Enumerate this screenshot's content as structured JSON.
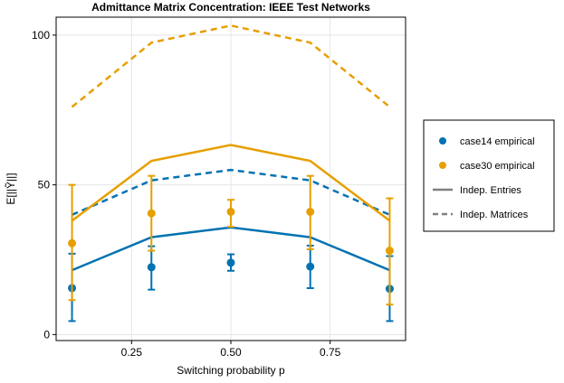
{
  "chart_data": {
    "type": "line",
    "title": "Admittance Matrix Concentration: IEEE Test Networks",
    "xlabel": "Switching probability p",
    "ylabel": "E[||Ỹ||]",
    "xlim": [
      0.06,
      0.94
    ],
    "ylim": [
      -2,
      106
    ],
    "xticks": [
      0.25,
      0.5,
      0.75
    ],
    "xtick_labels": [
      "0.25",
      "0.50",
      "0.75"
    ],
    "yticks": [
      0,
      50,
      100
    ],
    "ytick_labels": [
      "0",
      "50",
      "100"
    ],
    "grid": true,
    "legend_position": "right",
    "colors": {
      "case14": "#0072b2",
      "case30": "#e69f00",
      "legend_line": "#808080"
    },
    "scatter_series": [
      {
        "name": "case14 empirical",
        "color": "#0072b2",
        "x": [
          0.1,
          0.3,
          0.5,
          0.7,
          0.9
        ],
        "y": [
          15.5,
          22.5,
          24.0,
          22.7,
          15.3
        ],
        "err_low": [
          4.5,
          15.0,
          21.3,
          15.5,
          4.5
        ],
        "err_high": [
          27.0,
          29.5,
          26.8,
          29.7,
          26.2
        ]
      },
      {
        "name": "case30 empirical",
        "color": "#e69f00",
        "x": [
          0.1,
          0.3,
          0.5,
          0.7,
          0.9
        ],
        "y": [
          30.5,
          40.5,
          41.0,
          41.0,
          28.0
        ],
        "err_low": [
          11.5,
          28.0,
          36.0,
          28.5,
          10.0
        ],
        "err_high": [
          50.0,
          53.0,
          45.0,
          53.0,
          45.5
        ]
      }
    ],
    "line_series": [
      {
        "group": "case14",
        "style": "solid",
        "color": "#0072b2",
        "x": [
          0.1,
          0.3,
          0.5,
          0.7,
          0.9
        ],
        "y": [
          21.5,
          32.5,
          35.8,
          32.5,
          21.5
        ]
      },
      {
        "group": "case14",
        "style": "dashed",
        "color": "#0072b2",
        "x": [
          0.1,
          0.3,
          0.5,
          0.7,
          0.9
        ],
        "y": [
          40.0,
          51.5,
          55.0,
          51.5,
          40.0
        ]
      },
      {
        "group": "case30",
        "style": "solid",
        "color": "#e69f00",
        "x": [
          0.1,
          0.3,
          0.5,
          0.7,
          0.9
        ],
        "y": [
          38.0,
          58.0,
          63.3,
          58.0,
          38.0
        ]
      },
      {
        "group": "case30",
        "style": "dashed",
        "color": "#e69f00",
        "x": [
          0.1,
          0.3,
          0.5,
          0.7,
          0.9
        ],
        "y": [
          76.0,
          97.5,
          103.2,
          97.5,
          76.0
        ]
      }
    ],
    "legend": [
      {
        "label": "case14 empirical",
        "kind": "marker",
        "color": "#0072b2"
      },
      {
        "label": "case30 empirical",
        "kind": "marker",
        "color": "#e69f00"
      },
      {
        "label": "Indep. Entries",
        "kind": "solid",
        "color": "#808080"
      },
      {
        "label": "Indep. Matrices",
        "kind": "dashed",
        "color": "#808080"
      }
    ]
  }
}
